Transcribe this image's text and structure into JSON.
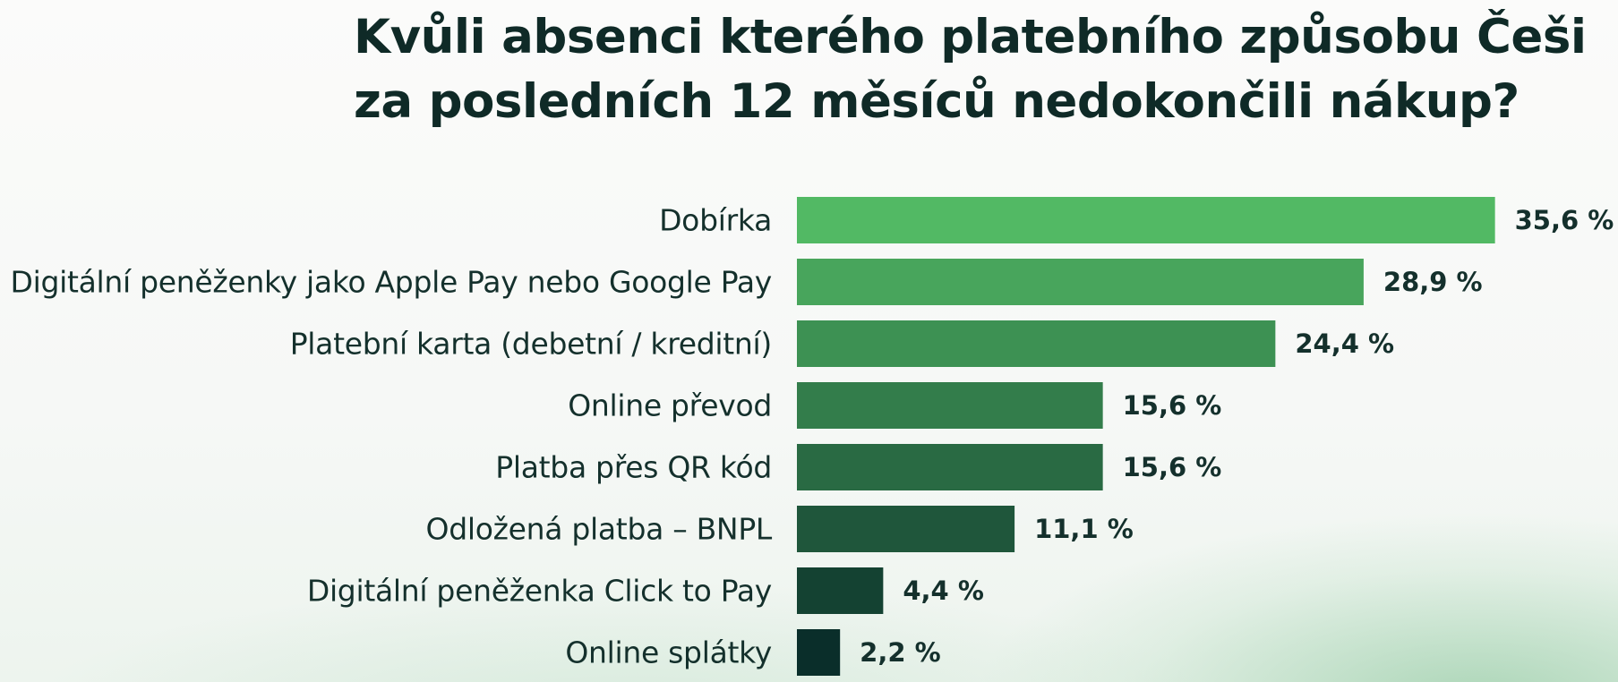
{
  "title_line1": "Kvůli absenci kterého platebního způsobu Češi",
  "title_line2": "za posledních 12 měsíců nedokončili nákup?",
  "colors": {
    "bar_top": "#52b964",
    "bar_bottom": "#0a2e2a",
    "text": "#14302c"
  },
  "chart_data": {
    "type": "bar",
    "orientation": "horizontal",
    "categories": [
      "Dobírka",
      "Digitální peněženky jako Apple Pay nebo Google Pay",
      "Platební karta (debetní / kreditní)",
      "Online převod",
      "Platba přes QR kód",
      "Odložená platba – BNPL",
      "Digitální peněženka Click to Pay",
      "Online splátky"
    ],
    "values": [
      35.6,
      28.9,
      24.4,
      15.6,
      15.6,
      11.1,
      4.4,
      2.2
    ],
    "value_labels": [
      "35,6 %",
      "28,9 %",
      "24,4 %",
      "15,6 %",
      "15,6 %",
      "11,1 %",
      "4,4 %",
      "2,2 %"
    ],
    "unit": "%",
    "title": "Kvůli absenci kterého platebního způsobu Češi za posledních 12 měsíců nedokončili nákup?",
    "xlabel": "",
    "ylabel": "",
    "grid": false,
    "legend": "none"
  }
}
